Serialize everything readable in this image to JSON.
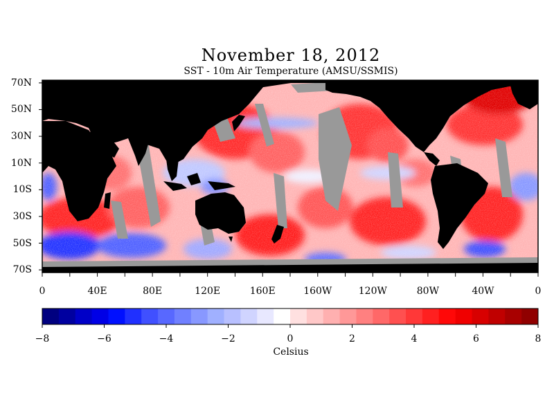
{
  "title": "November 18, 2012",
  "subtitle": "SST - 10m Air Temperature (AMSU/SSMIS)",
  "map": {
    "lat_labels": [
      "70N",
      "50N",
      "30N",
      "10N",
      "10S",
      "30S",
      "50S",
      "70S"
    ],
    "lat_values": [
      70,
      50,
      30,
      10,
      -10,
      -30,
      -50,
      -70
    ],
    "lon_labels": [
      "0",
      "40E",
      "80E",
      "120E",
      "160E",
      "160W",
      "120W",
      "80W",
      "40W",
      "0"
    ],
    "lon_values": [
      0,
      40,
      80,
      120,
      160,
      200,
      240,
      280,
      320,
      360
    ],
    "lat_range": [
      -72,
      72
    ],
    "lon_range": [
      0,
      360
    ],
    "colors": {
      "land": "#000000",
      "missing": "#999999",
      "ocean_zero": "#ffffff"
    }
  },
  "colorbar": {
    "ticks": [
      "-8",
      "-6",
      "-4",
      "-2",
      "0",
      "2",
      "4",
      "6",
      "8"
    ],
    "range": [
      -8,
      8
    ],
    "label": "Celsius",
    "colors": [
      "#000080",
      "#0000a0",
      "#0000c8",
      "#0000e6",
      "#0010ff",
      "#2030ff",
      "#4050ff",
      "#5868ff",
      "#7080ff",
      "#8898ff",
      "#a0b0ff",
      "#b8c0ff",
      "#d0d4ff",
      "#e8e8ff",
      "#ffffff",
      "#ffe0e0",
      "#ffc8c8",
      "#ffb0b0",
      "#ff9898",
      "#ff8080",
      "#ff6868",
      "#ff5050",
      "#ff3838",
      "#ff2020",
      "#ff0808",
      "#f00000",
      "#d80000",
      "#c00000",
      "#a80000",
      "#900000"
    ]
  }
}
